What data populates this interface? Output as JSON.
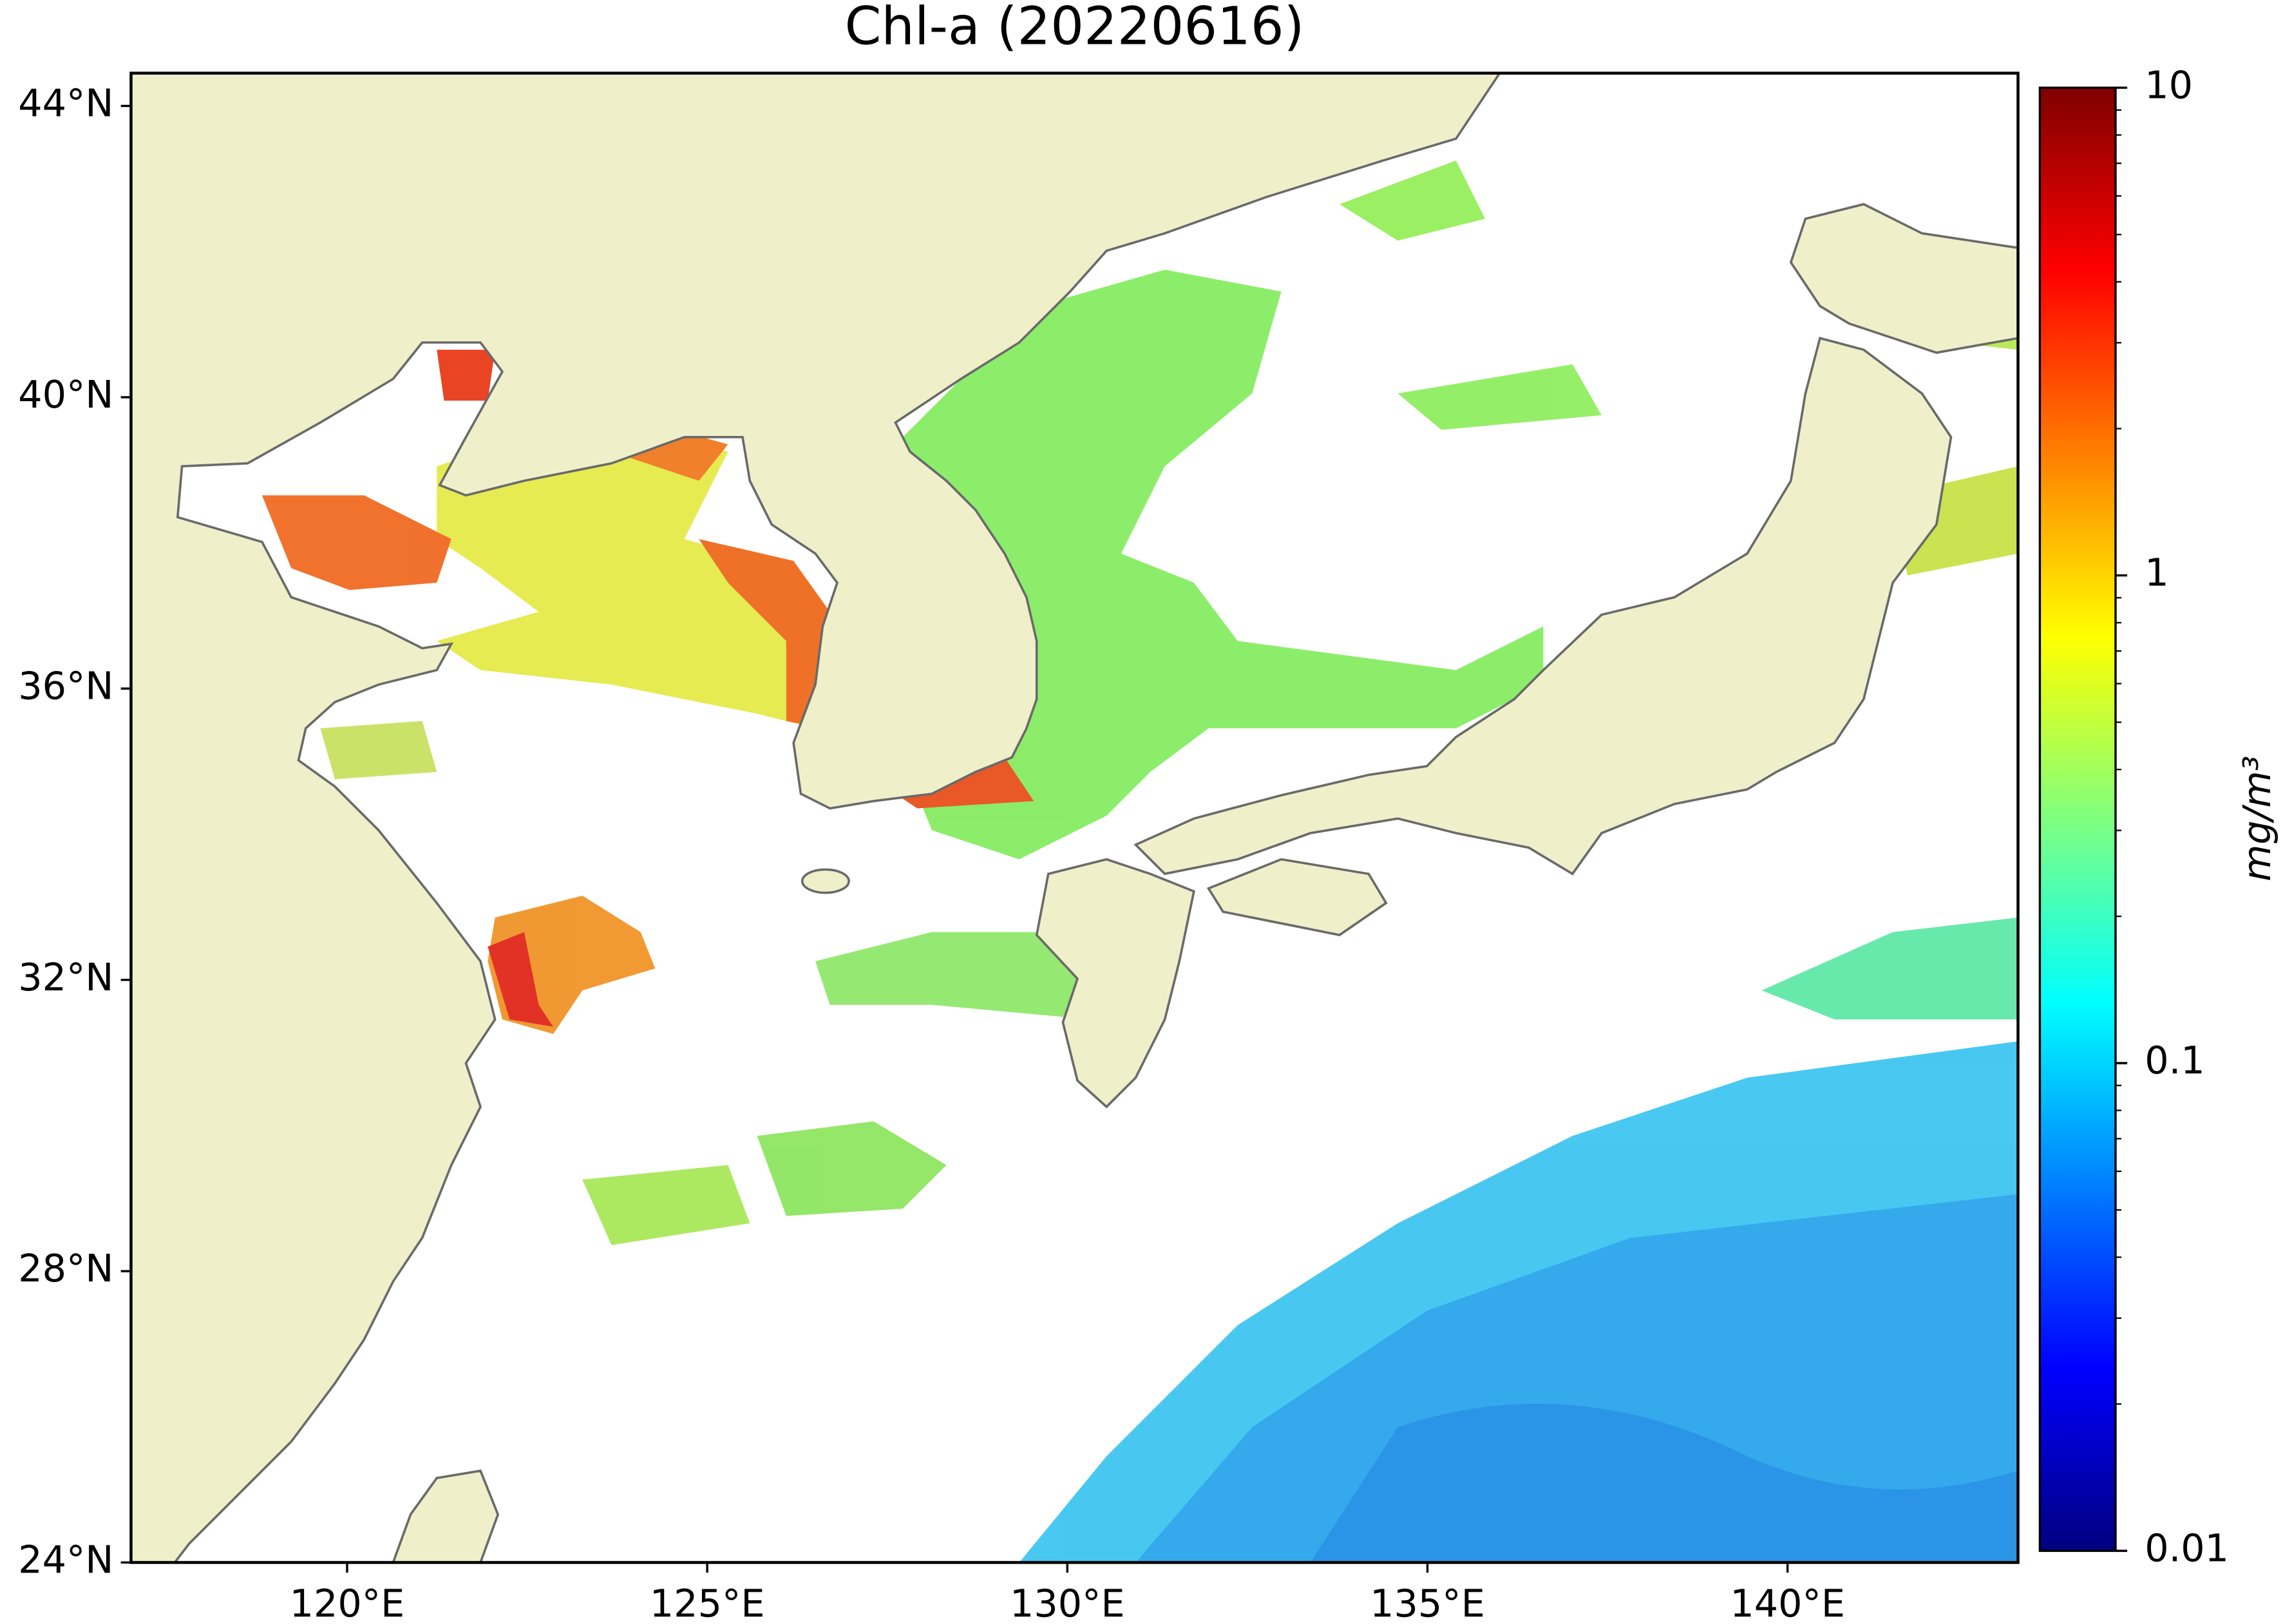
{
  "title": "Chl-a (20220616)",
  "map": {
    "xlim": [
      117,
      143.2
    ],
    "ylim": [
      24,
      44.45
    ],
    "xticks": [
      {
        "value": 120,
        "label": "120°E"
      },
      {
        "value": 125,
        "label": "125°E"
      },
      {
        "value": 130,
        "label": "130°E"
      },
      {
        "value": 135,
        "label": "135°E"
      },
      {
        "value": 140,
        "label": "140°E"
      }
    ],
    "yticks": [
      {
        "value": 24,
        "label": "24°N"
      },
      {
        "value": 28,
        "label": "28°N"
      },
      {
        "value": 32,
        "label": "32°N"
      },
      {
        "value": 36,
        "label": "36°N"
      },
      {
        "value": 40,
        "label": "40°N"
      },
      {
        "value": 44,
        "label": "44°N"
      }
    ]
  },
  "colorbar": {
    "label": "mg/m³",
    "scale": "log",
    "lim": [
      0.01,
      10
    ],
    "ticks": [
      0.01,
      0.1,
      1,
      10
    ],
    "colors": [
      "#00007f",
      "#0000ff",
      "#007fff",
      "#00ffff",
      "#7fff7f",
      "#ffff00",
      "#ff7f00",
      "#ff0000",
      "#7f0000"
    ]
  }
}
